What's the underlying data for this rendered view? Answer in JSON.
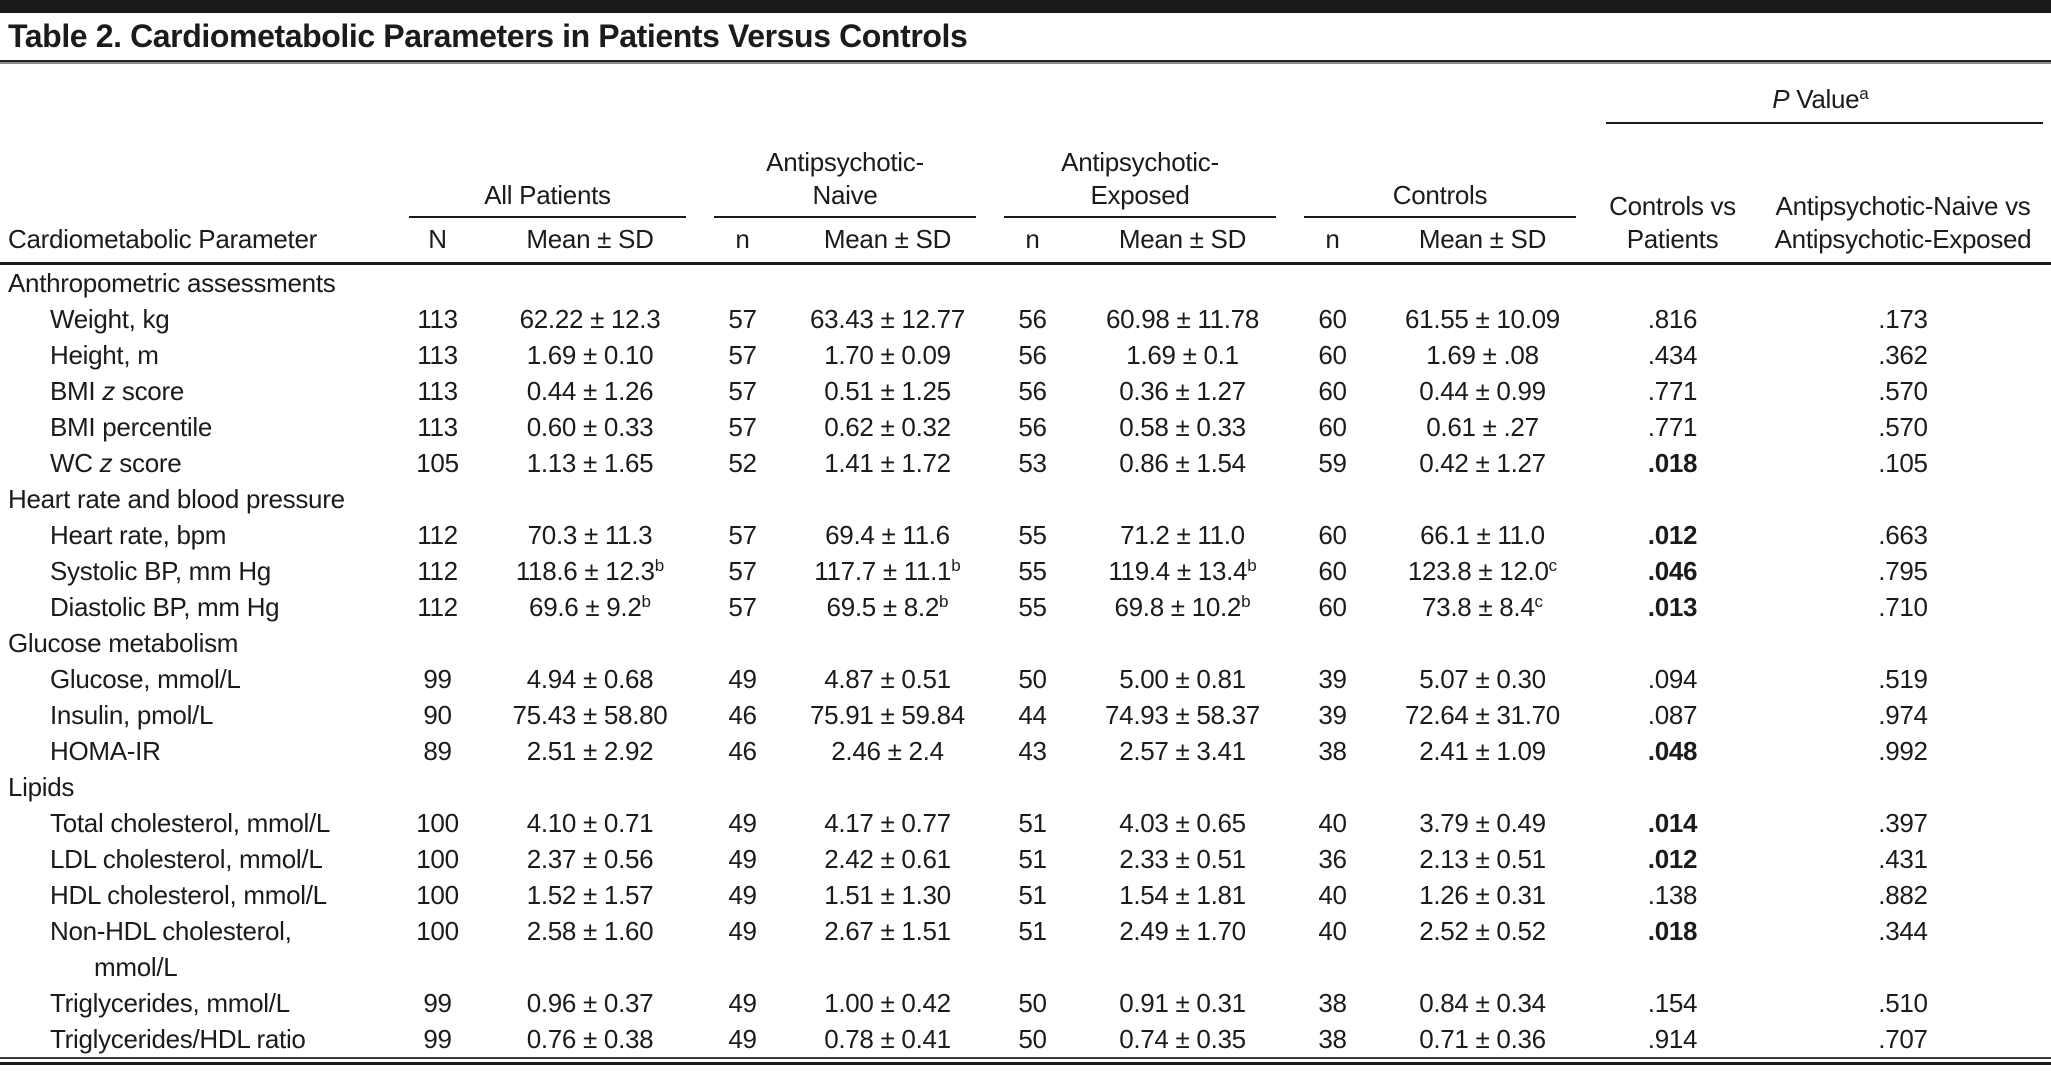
{
  "title": "Table 2. Cardiometabolic Parameters in Patients Versus Controls",
  "header": {
    "parameter": "Cardiometabolic Parameter",
    "groups": [
      {
        "label": "All Patients",
        "n": "N",
        "mean": "Mean ± SD"
      },
      {
        "label": "Antipsychotic-Naive",
        "n": "n",
        "mean": "Mean ± SD"
      },
      {
        "label": "Antipsychotic-Exposed",
        "n": "n",
        "mean": "Mean ± SD"
      },
      {
        "label": "Controls",
        "n": "n",
        "mean": "Mean ± SD"
      }
    ],
    "p_group": {
      "label_p": "P",
      "label_rest": " Value",
      "sup": "a",
      "col1": "Controls vs Patients",
      "col2": "Antipsychotic-Naive vs Antipsychotic-Exposed"
    }
  },
  "sections": [
    {
      "label": "Anthropometric assessments",
      "rows": [
        {
          "label": "Weight, kg",
          "all_n": "113",
          "all_mean": "62.22 ± 12.3",
          "naive_n": "57",
          "naive_mean": "63.43 ± 12.77",
          "exposed_n": "56",
          "exposed_mean": "60.98 ± 11.78",
          "controls_n": "60",
          "controls_mean": "61.55 ± 10.09",
          "p1": ".816",
          "p1_bold": false,
          "p2": ".173"
        },
        {
          "label": "Height, m",
          "all_n": "113",
          "all_mean": "1.69 ± 0.10",
          "naive_n": "57",
          "naive_mean": "1.70 ± 0.09",
          "exposed_n": "56",
          "exposed_mean": "1.69 ± 0.1",
          "controls_n": "60",
          "controls_mean": "1.69 ± .08",
          "p1": ".434",
          "p1_bold": false,
          "p2": ".362"
        },
        {
          "label_pre": "BMI",
          "label_italic": "z",
          "label_post": "score",
          "all_n": "113",
          "all_mean": "0.44 ± 1.26",
          "naive_n": "57",
          "naive_mean": "0.51 ± 1.25",
          "exposed_n": "56",
          "exposed_mean": "0.36 ± 1.27",
          "controls_n": "60",
          "controls_mean": "0.44 ± 0.99",
          "p1": ".771",
          "p1_bold": false,
          "p2": ".570"
        },
        {
          "label": "BMI percentile",
          "all_n": "113",
          "all_mean": "0.60 ± 0.33",
          "naive_n": "57",
          "naive_mean": "0.62 ± 0.32",
          "exposed_n": "56",
          "exposed_mean": "0.58 ± 0.33",
          "controls_n": "60",
          "controls_mean": "0.61 ± .27",
          "p1": ".771",
          "p1_bold": false,
          "p2": ".570"
        },
        {
          "label_pre": "WC",
          "label_italic": "z",
          "label_post": "score",
          "all_n": "105",
          "all_mean": "1.13 ± 1.65",
          "naive_n": "52",
          "naive_mean": "1.41 ± 1.72",
          "exposed_n": "53",
          "exposed_mean": "0.86 ± 1.54",
          "controls_n": "59",
          "controls_mean": "0.42 ± 1.27",
          "p1": ".018",
          "p1_bold": true,
          "p2": ".105"
        }
      ]
    },
    {
      "label": "Heart rate and blood pressure",
      "rows": [
        {
          "label": "Heart rate, bpm",
          "all_n": "112",
          "all_mean": "70.3 ± 11.3",
          "naive_n": "57",
          "naive_mean": "69.4 ± 11.6",
          "exposed_n": "55",
          "exposed_mean": "71.2 ± 11.0",
          "controls_n": "60",
          "controls_mean": "66.1 ± 11.0",
          "p1": ".012",
          "p1_bold": true,
          "p2": ".663"
        },
        {
          "label": "Systolic BP, mm Hg",
          "all_n": "112",
          "all_mean": "118.6 ± 12.3",
          "all_sup": "b",
          "naive_n": "57",
          "naive_mean": "117.7 ± 11.1",
          "naive_sup": "b",
          "exposed_n": "55",
          "exposed_mean": "119.4 ± 13.4",
          "exposed_sup": "b",
          "controls_n": "60",
          "controls_mean": "123.8 ± 12.0",
          "controls_sup": "c",
          "p1": ".046",
          "p1_bold": true,
          "p2": ".795"
        },
        {
          "label": "Diastolic BP, mm Hg",
          "all_n": "112",
          "all_mean": "69.6 ± 9.2",
          "all_sup": "b",
          "naive_n": "57",
          "naive_mean": "69.5 ± 8.2",
          "naive_sup": "b",
          "exposed_n": "55",
          "exposed_mean": "69.8 ± 10.2",
          "exposed_sup": "b",
          "controls_n": "60",
          "controls_mean": "73.8 ± 8.4",
          "controls_sup": "c",
          "p1": ".013",
          "p1_bold": true,
          "p2": ".710"
        }
      ]
    },
    {
      "label": "Glucose metabolism",
      "rows": [
        {
          "label": "Glucose, mmol/L",
          "all_n": "99",
          "all_mean": "4.94 ± 0.68",
          "naive_n": "49",
          "naive_mean": "4.87 ± 0.51",
          "exposed_n": "50",
          "exposed_mean": "5.00 ± 0.81",
          "controls_n": "39",
          "controls_mean": "5.07 ± 0.30",
          "p1": ".094",
          "p1_bold": false,
          "p2": ".519"
        },
        {
          "label": "Insulin, pmol/L",
          "all_n": "90",
          "all_mean": "75.43 ± 58.80",
          "naive_n": "46",
          "naive_mean": "75.91 ± 59.84",
          "exposed_n": "44",
          "exposed_mean": "74.93 ± 58.37",
          "controls_n": "39",
          "controls_mean": "72.64 ± 31.70",
          "p1": ".087",
          "p1_bold": false,
          "p2": ".974"
        },
        {
          "label": "HOMA-IR",
          "all_n": "89",
          "all_mean": "2.51 ± 2.92",
          "naive_n": "46",
          "naive_mean": "2.46 ± 2.4",
          "exposed_n": "43",
          "exposed_mean": "2.57 ± 3.41",
          "controls_n": "38",
          "controls_mean": "2.41 ± 1.09",
          "p1": ".048",
          "p1_bold": true,
          "p2": ".992"
        }
      ]
    },
    {
      "label": "Lipids",
      "rows": [
        {
          "label": "Total cholesterol, mmol/L",
          "all_n": "100",
          "all_mean": "4.10 ± 0.71",
          "naive_n": "49",
          "naive_mean": "4.17 ± 0.77",
          "exposed_n": "51",
          "exposed_mean": "4.03 ± 0.65",
          "controls_n": "40",
          "controls_mean": "3.79 ± 0.49",
          "p1": ".014",
          "p1_bold": true,
          "p2": ".397"
        },
        {
          "label": "LDL cholesterol, mmol/L",
          "all_n": "100",
          "all_mean": "2.37 ± 0.56",
          "naive_n": "49",
          "naive_mean": "2.42 ± 0.61",
          "exposed_n": "51",
          "exposed_mean": "2.33 ± 0.51",
          "controls_n": "36",
          "controls_mean": "2.13 ± 0.51",
          "p1": ".012",
          "p1_bold": true,
          "p2": ".431"
        },
        {
          "label": "HDL cholesterol, mmol/L",
          "all_n": "100",
          "all_mean": "1.52 ± 1.57",
          "naive_n": "49",
          "naive_mean": "1.51 ± 1.30",
          "exposed_n": "51",
          "exposed_mean": "1.54 ± 1.81",
          "controls_n": "40",
          "controls_mean": "1.26 ± 0.31",
          "p1": ".138",
          "p1_bold": false,
          "p2": ".882"
        },
        {
          "label": "Non-HDL cholesterol,",
          "label2": "mmol/L",
          "all_n": "100",
          "all_mean": "2.58 ± 1.60",
          "naive_n": "49",
          "naive_mean": "2.67 ± 1.51",
          "exposed_n": "51",
          "exposed_mean": "2.49 ± 1.70",
          "controls_n": "40",
          "controls_mean": "2.52 ± 0.52",
          "p1": ".018",
          "p1_bold": true,
          "p2": ".344"
        },
        {
          "label": "Triglycerides, mmol/L",
          "all_n": "99",
          "all_mean": "0.96 ± 0.37",
          "naive_n": "49",
          "naive_mean": "1.00 ± 0.42",
          "exposed_n": "50",
          "exposed_mean": "0.91 ± 0.31",
          "controls_n": "38",
          "controls_mean": "0.84 ± 0.34",
          "p1": ".154",
          "p1_bold": false,
          "p2": ".510"
        },
        {
          "label": "Triglycerides/HDL ratio",
          "all_n": "99",
          "all_mean": "0.76 ± 0.38",
          "naive_n": "49",
          "naive_mean": "0.78 ± 0.41",
          "exposed_n": "50",
          "exposed_mean": "0.74 ± 0.35",
          "controls_n": "38",
          "controls_mean": "0.71 ± 0.36",
          "p1": ".914",
          "p1_bold": false,
          "p2": ".707"
        }
      ]
    }
  ]
}
